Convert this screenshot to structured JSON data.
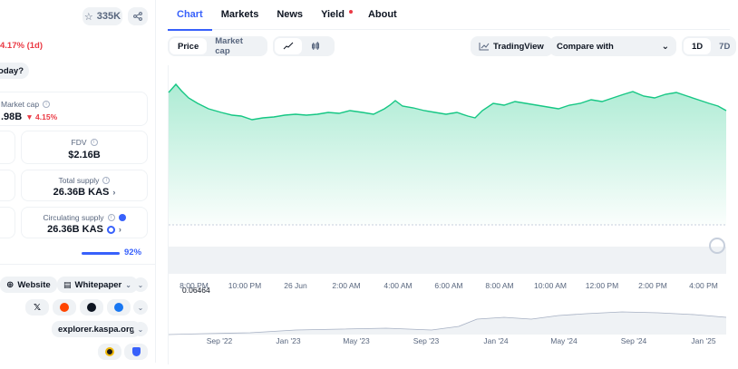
{
  "header": {
    "watchlist_count": "335K",
    "price_change": "4.17% (1d)",
    "today_prompt": "today?"
  },
  "stats": {
    "market_cap": {
      "label": "Market cap",
      "value": ".98B",
      "change": "4.15%"
    },
    "fdv": {
      "label": "FDV",
      "value": "$2.16B"
    },
    "total_supply": {
      "label": "Total supply",
      "value": "26.36B KAS"
    },
    "circulating_supply": {
      "label": "Circulating supply",
      "value": "26.36B KAS"
    },
    "supply_percent": "92%"
  },
  "links": {
    "website": "Website",
    "whitepaper": "Whitepaper",
    "explorer": "explorer.kaspa.org",
    "social": [
      "X",
      "reddit",
      "github",
      "facebook"
    ]
  },
  "tabs": [
    {
      "label": "Chart",
      "active": true
    },
    {
      "label": "Markets",
      "active": false
    },
    {
      "label": "News",
      "active": false
    },
    {
      "label": "Yield",
      "active": false
    },
    {
      "label": "About",
      "active": false
    }
  ],
  "controls": {
    "price_label": "Price",
    "market_cap_label": "Market cap",
    "tradingview_label": "TradingView",
    "compare_label": "Compare with",
    "range_1d": "1D",
    "range_7d": "7D"
  },
  "colors": {
    "accent": "#3861fb",
    "positive": "#16c784",
    "negative": "#ea3943"
  },
  "chart_data": {
    "type": "area",
    "reference_price": "0.06464",
    "x_labels": [
      "8:00 PM",
      "10:00 PM",
      "26 Jun",
      "2:00 AM",
      "4:00 AM",
      "6:00 AM",
      "8:00 AM",
      "10:00 AM",
      "12:00 PM",
      "2:00 PM",
      "4:00 PM"
    ],
    "overview_labels": [
      "Sep '22",
      "Jan '23",
      "May '23",
      "Sep '23",
      "Jan '24",
      "May '24",
      "Sep '24",
      "Jan '25"
    ]
  }
}
